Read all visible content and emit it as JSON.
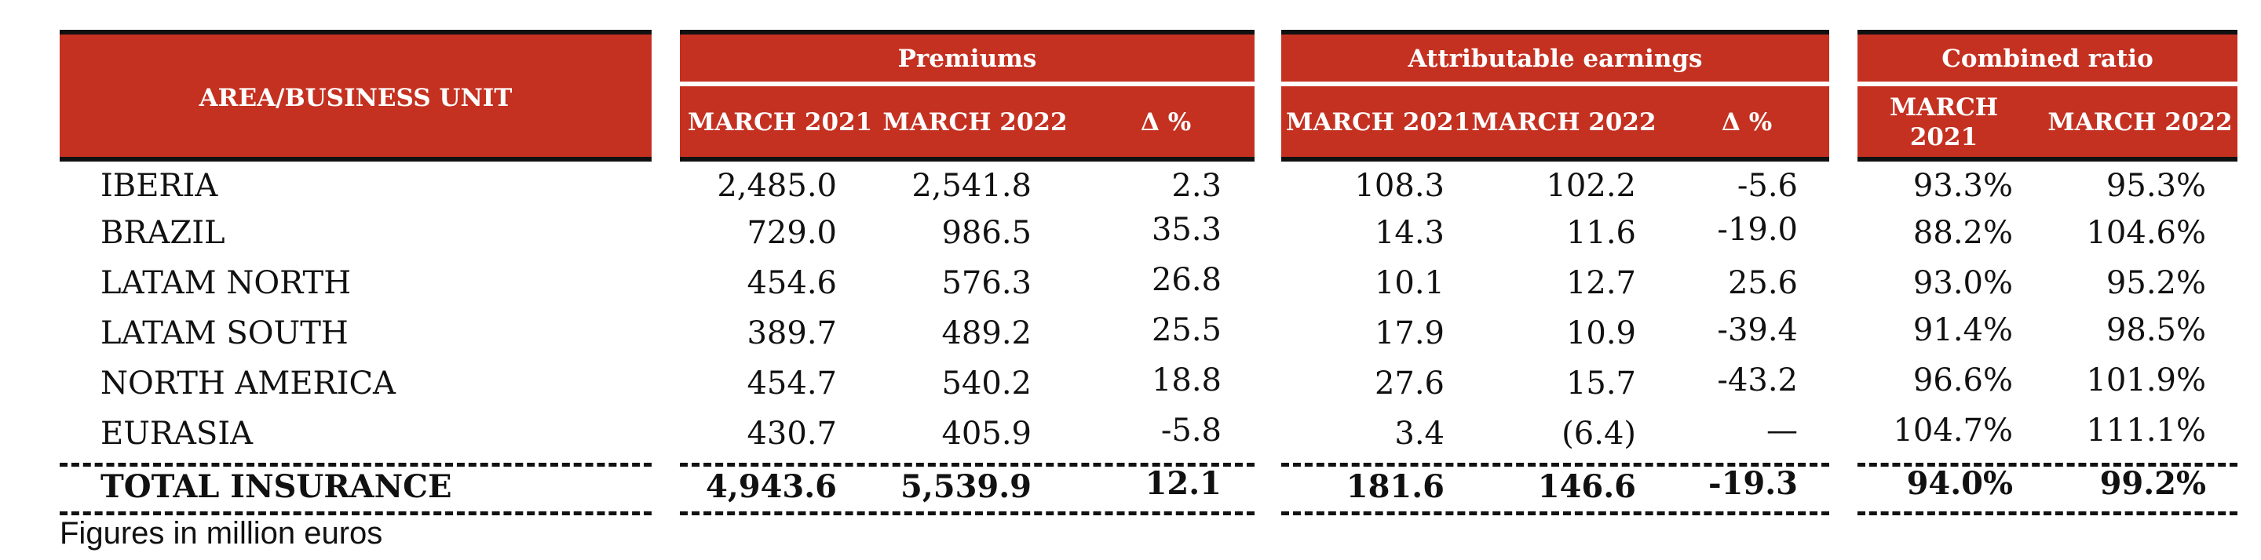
{
  "table": {
    "header": {
      "area": "AREA/BUSINESS UNIT",
      "groups": {
        "premiums": "Premiums",
        "earnings": "Attributable earnings",
        "combined": "Combined ratio"
      },
      "cols": {
        "p_2021": "MARCH 2021",
        "p_2022": "MARCH 2022",
        "p_delta": "Δ %",
        "e_2021": "MARCH 2021",
        "e_2022": "MARCH 2022",
        "e_delta": "Δ %",
        "c_2021_line1": "MARCH",
        "c_2021_line2": "2021",
        "c_2022": "MARCH 2022"
      }
    },
    "rows": [
      {
        "area": "IBERIA",
        "p2021": "2,485.0",
        "p2022": "2,541.8",
        "pd": "2.3",
        "e2021": "108.3",
        "e2022": "102.2",
        "ed": "-5.6",
        "c2021": "93.3%",
        "c2022": "95.3%"
      },
      {
        "area": "BRAZIL",
        "p2021": "729.0",
        "p2022": "986.5",
        "pd": "35.3",
        "e2021": "14.3",
        "e2022": "11.6",
        "ed": "-19.0",
        "c2021": "88.2%",
        "c2022": "104.6%"
      },
      {
        "area": "LATAM NORTH",
        "p2021": "454.6",
        "p2022": "576.3",
        "pd": "26.8",
        "e2021": "10.1",
        "e2022": "12.7",
        "ed": "25.6",
        "c2021": "93.0%",
        "c2022": "95.2%"
      },
      {
        "area": "LATAM SOUTH",
        "p2021": "389.7",
        "p2022": "489.2",
        "pd": "25.5",
        "e2021": "17.9",
        "e2022": "10.9",
        "ed": "-39.4",
        "c2021": "91.4%",
        "c2022": "98.5%"
      },
      {
        "area": "NORTH AMERICA",
        "p2021": "454.7",
        "p2022": "540.2",
        "pd": "18.8",
        "e2021": "27.6",
        "e2022": "15.7",
        "ed": "-43.2",
        "c2021": "96.6%",
        "c2022": "101.9%"
      },
      {
        "area": "EURASIA",
        "p2021": "430.7",
        "p2022": "405.9",
        "pd": "-5.8",
        "e2021": "3.4",
        "e2022": "(6.4)",
        "ed": "—",
        "c2021": "104.7%",
        "c2022": "111.1%"
      }
    ],
    "total": {
      "area": "TOTAL INSURANCE",
      "p2021": "4,943.6",
      "p2022": "5,539.9",
      "pd": "12.1",
      "e2021": "181.6",
      "e2022": "146.6",
      "ed": "-19.3",
      "c2021": "94.0%",
      "c2022": "99.2%"
    }
  },
  "footnote": "Figures in million euros",
  "colors": {
    "header_bg": "#c43121",
    "text": "#111111"
  }
}
